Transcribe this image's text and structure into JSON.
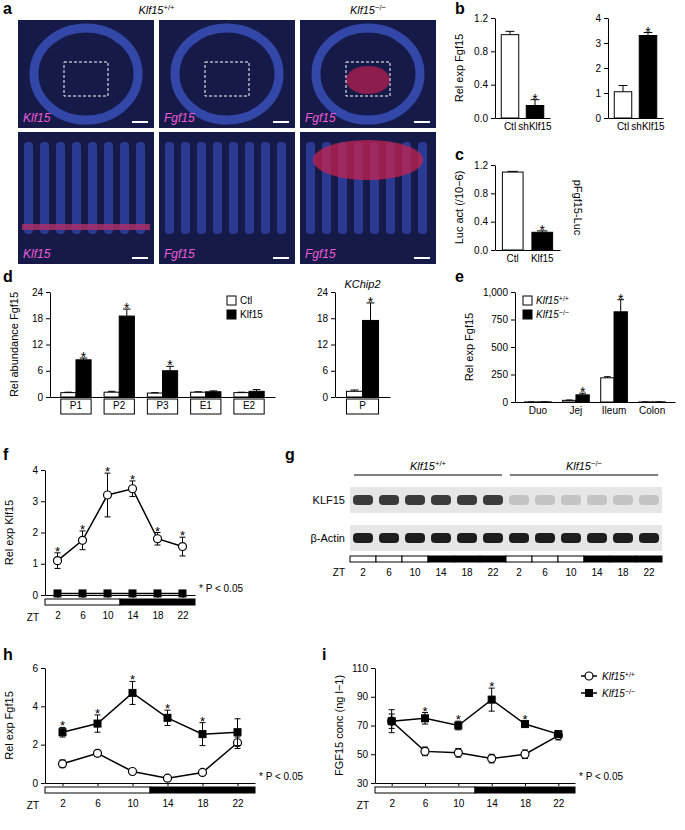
{
  "chart_data": [
    {
      "panel": "b",
      "type": "bar",
      "categories": [
        "Ctl",
        "shKlf15"
      ],
      "values": [
        1.0,
        0.15
      ],
      "errors": [
        0.04,
        0.07
      ],
      "colors": [
        "#ffffff",
        "#000000"
      ],
      "significant": [
        false,
        true
      ],
      "sig_label": "*",
      "ylabel": "Rel exp Fgf15",
      "ylim": [
        0,
        1.2
      ],
      "yticks": [
        {
          "value": 0,
          "label": "0.0"
        },
        0.4,
        0.8,
        1.2
      ]
    },
    {
      "type": "bar",
      "categories": [
        "Ctl",
        "shKlf15"
      ],
      "values": [
        1.05,
        3.3
      ],
      "errors": [
        0.25,
        0.12
      ],
      "colors": [
        "#ffffff",
        "#000000"
      ],
      "significant": [
        false,
        true
      ],
      "sig_label": "*",
      "ylim": [
        0,
        4
      ],
      "yticks": [
        0,
        1,
        2,
        3,
        4
      ]
    },
    {
      "panel": "c",
      "type": "bar",
      "categories": [
        "Ctl",
        "Klf15"
      ],
      "values": [
        1.1,
        0.25
      ],
      "errors": [
        0.01,
        0.02
      ],
      "colors": [
        "#ffffff",
        "#000000"
      ],
      "significant": [
        false,
        true
      ],
      "sig_label": "*",
      "ylabel": "Luc act (/10−6)",
      "side_label": "pFgf15-Luc",
      "ylim": [
        0,
        1.2
      ],
      "yticks": [
        {
          "value": 0,
          "label": "0.0"
        },
        0.4,
        0.8,
        1.2
      ]
    },
    {
      "panel": "d",
      "type": "bar",
      "categories": [
        "P1",
        "P2",
        "P3",
        "E1",
        "E2"
      ],
      "series": [
        {
          "name": "Ctl",
          "color": "#ffffff",
          "values": [
            1,
            1.1,
            0.9,
            1.1,
            1.0
          ],
          "errors": [
            0.1,
            0.2,
            0.1,
            0.1,
            0.1
          ],
          "significant": [
            false,
            false,
            false,
            false,
            false
          ]
        },
        {
          "name": "Klf15",
          "color": "#000000",
          "values": [
            8.5,
            18.5,
            6,
            1.2,
            1.3
          ],
          "errors": [
            0.4,
            1.6,
            1.0,
            0.2,
            0.4
          ],
          "significant": [
            true,
            true,
            true,
            false,
            false
          ]
        }
      ],
      "legend": "top-right",
      "sig_label": "*",
      "ylabel": "Rel abundance Fgf15",
      "ylim": [
        0,
        24
      ],
      "yticks": [
        0,
        6,
        12,
        18,
        24
      ]
    },
    {
      "type": "bar",
      "title": "KChip2",
      "categories": [
        "P"
      ],
      "series": [
        {
          "color": "#ffffff",
          "values": [
            1.3
          ],
          "errors": [
            0.3
          ],
          "significant": [
            false
          ]
        },
        {
          "color": "#000000",
          "values": [
            17.5
          ],
          "errors": [
            4
          ],
          "significant": [
            true
          ]
        }
      ],
      "sig_label": "*",
      "ylim": [
        0,
        24
      ],
      "yticks": [
        0,
        6,
        12,
        18,
        24
      ]
    },
    {
      "panel": "e",
      "type": "bar",
      "categories": [
        "Duo",
        "Jej",
        "Ileum",
        "Colon"
      ],
      "series": [
        {
          "name": "Klf15+/+",
          "color": "#ffffff",
          "values": [
            0.5,
            15,
            220,
            0.5
          ],
          "errors": [
            0.2,
            3,
            10,
            0.2
          ],
          "significant": [
            false,
            false,
            false,
            false
          ]
        },
        {
          "name": "Klf15−/−",
          "color": "#000000",
          "values": [
            1,
            65,
            820,
            1
          ],
          "errors": [
            0.5,
            15,
            110,
            0.5
          ],
          "significant": [
            false,
            true,
            true,
            false
          ]
        }
      ],
      "legend": "top-left",
      "sig_label": "*",
      "ylabel": "Rel exp Fgf15",
      "ylim": [
        0,
        1000
      ],
      "yticks": [
        0,
        250,
        500,
        750,
        {
          "value": 1000,
          "label": "1,000"
        }
      ]
    },
    {
      "panel": "f",
      "type": "line",
      "x": [
        2,
        6,
        10,
        14,
        18,
        22
      ],
      "xlim": [
        0,
        24
      ],
      "xticks": [
        2,
        6,
        10,
        14,
        18,
        22
      ],
      "xlabel": "ZT",
      "dark_phase": [
        12,
        24
      ],
      "series": [
        {
          "color": "#000000",
          "marker": "open-circle",
          "values": [
            1.1,
            1.75,
            3.2,
            3.4,
            1.8,
            1.55
          ],
          "errors": [
            0.25,
            0.3,
            0.7,
            0.25,
            0.2,
            0.3
          ],
          "significant": [
            true,
            true,
            true,
            true,
            true,
            true
          ]
        },
        {
          "color": "#000000",
          "marker": "square",
          "values": [
            0.05,
            0.05,
            0.05,
            0.05,
            0.05,
            0.05
          ],
          "errors": [
            0.02,
            0.02,
            0.02,
            0.02,
            0.02,
            0.02
          ],
          "significant": [
            false,
            false,
            false,
            false,
            false,
            false
          ]
        }
      ],
      "sig_label": "*",
      "annotation": "* P < 0.05",
      "ylabel": "Rel exp Klf15",
      "ylim": [
        0,
        4
      ],
      "yticks": [
        0,
        1,
        2,
        3,
        4
      ]
    },
    {
      "panel": "h",
      "type": "line",
      "x": [
        2,
        6,
        10,
        14,
        18,
        22
      ],
      "xlim": [
        0,
        24
      ],
      "xticks": [
        2,
        6,
        10,
        14,
        18,
        22
      ],
      "xlabel": "ZT",
      "dark_phase": [
        12,
        24
      ],
      "series": [
        {
          "color": "#000000",
          "marker": "open-circle",
          "values": [
            1.0,
            1.55,
            0.6,
            0.25,
            0.55,
            2.1
          ],
          "errors": [
            0.2,
            0.15,
            0.1,
            0.05,
            0.1,
            0.3
          ],
          "significant": [
            false,
            false,
            false,
            false,
            false,
            false
          ]
        },
        {
          "color": "#000000",
          "marker": "square",
          "values": [
            2.65,
            3.1,
            4.7,
            3.4,
            2.55,
            2.65
          ],
          "errors": [
            0.25,
            0.45,
            0.6,
            0.4,
            0.6,
            0.7
          ],
          "significant": [
            true,
            true,
            true,
            true,
            true,
            false
          ]
        }
      ],
      "sig_label": "*",
      "annotation": "* P < 0.05",
      "ylabel": "Rel exp Fgf15",
      "ylim": [
        0,
        6
      ],
      "yticks": [
        0,
        2,
        4,
        6
      ]
    },
    {
      "panel": "i",
      "type": "line",
      "x": [
        2,
        6,
        10,
        14,
        18,
        22
      ],
      "xlim": [
        0,
        24
      ],
      "xticks": [
        2,
        6,
        10,
        14,
        18,
        22
      ],
      "xlabel": "ZT",
      "dark_phase": [
        12,
        24
      ],
      "series": [
        {
          "name": "Klf15+/+",
          "color": "#000000",
          "marker": "open-circle",
          "values": [
            73,
            52,
            51,
            47,
            50,
            63
          ],
          "errors": [
            8,
            3,
            3,
            3,
            3,
            3
          ],
          "significant": [
            false,
            false,
            false,
            false,
            false,
            false
          ]
        },
        {
          "name": "Klf15−/−",
          "color": "#000000",
          "marker": "square",
          "values": [
            73,
            75,
            70,
            88,
            71,
            64
          ],
          "errors": [
            5,
            4,
            3,
            8,
            2,
            2
          ],
          "significant": [
            false,
            true,
            true,
            true,
            true,
            false
          ]
        }
      ],
      "legend": "outside-right",
      "sig_label": "*",
      "annotation": "* P < 0.05",
      "ylabel": "FGF15 conc (ng l−1)",
      "ylim": [
        30,
        110
      ],
      "yticks": [
        30,
        50,
        70,
        90,
        110
      ]
    }
  ],
  "images": {
    "panel": "a",
    "headers": [
      "Klf15+/+",
      "Klf15−/−"
    ],
    "stains": [
      "Klf15",
      "Fgf15",
      "Fgf15"
    ]
  },
  "blot": {
    "panel": "g",
    "groups": [
      "Klf15+/+",
      "Klf15−/−"
    ],
    "rows": [
      "KLF15",
      "β-Actin"
    ],
    "lanes": [
      2,
      6,
      10,
      14,
      18,
      22
    ],
    "xlabel": "ZT",
    "dark_phase": [
      12,
      24
    ]
  }
}
